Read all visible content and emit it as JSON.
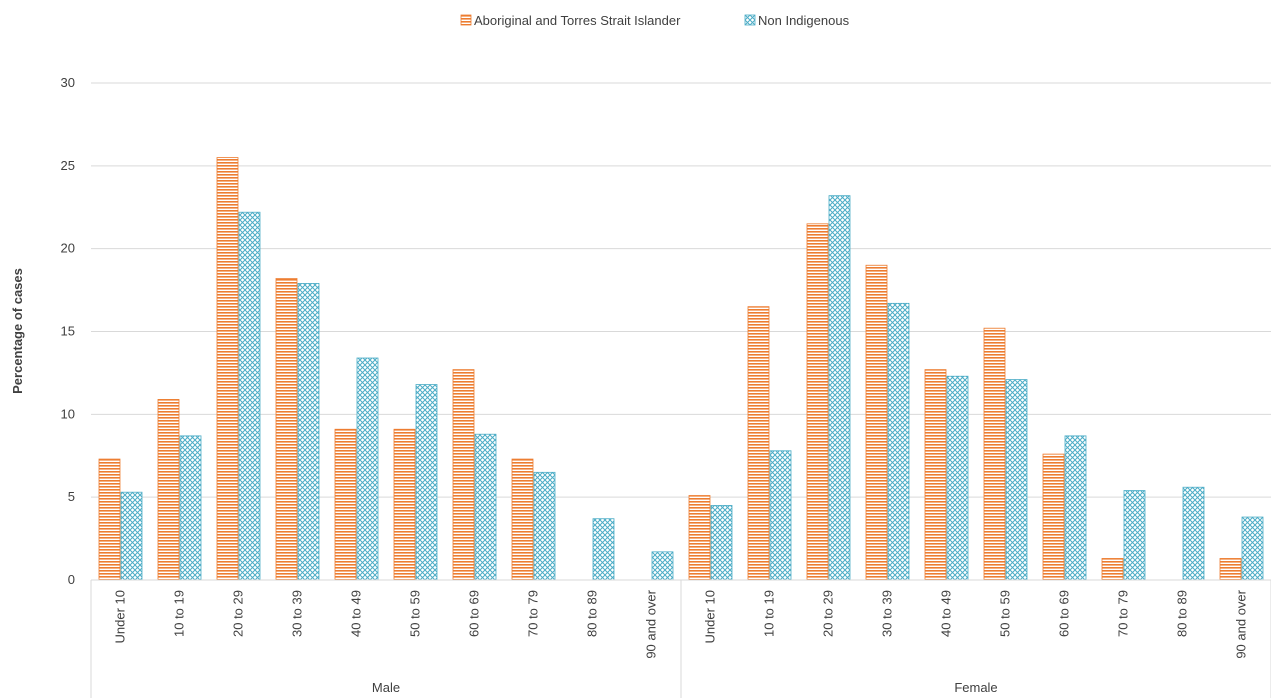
{
  "chart_data": {
    "type": "bar",
    "title": "",
    "xlabel": "",
    "ylabel": "Percentage of cases",
    "ylim": [
      0,
      30
    ],
    "yticks": [
      "0",
      "5",
      "10",
      "15",
      "20",
      "25",
      "30"
    ],
    "grid": true,
    "legend_position": "top-center",
    "groups": [
      "Male",
      "Female"
    ],
    "categories": [
      "Under 10",
      "10 to 19",
      "20 to 29",
      "30 to 39",
      "40 to 49",
      "50 to 59",
      "60 to 69",
      "70 to 79",
      "80 to 89",
      "90 and over"
    ],
    "series": [
      {
        "name": "Aboriginal and Torres Strait Islander",
        "color": "#ED7D31",
        "pattern": "horizontal-lines",
        "values": {
          "Male": [
            7.3,
            10.9,
            25.5,
            18.2,
            9.1,
            9.1,
            12.7,
            7.3,
            0,
            0
          ],
          "Female": [
            5.1,
            16.5,
            21.5,
            19.0,
            12.7,
            15.2,
            7.6,
            1.3,
            0,
            1.3
          ]
        }
      },
      {
        "name": "Non Indigenous",
        "color": "#4BACC6",
        "pattern": "crosshatch",
        "values": {
          "Male": [
            5.3,
            8.7,
            22.2,
            17.9,
            13.4,
            11.8,
            8.8,
            6.5,
            3.7,
            1.7
          ],
          "Female": [
            4.5,
            7.8,
            23.2,
            16.7,
            12.3,
            12.1,
            8.7,
            5.4,
            5.6,
            3.8
          ]
        }
      }
    ]
  }
}
